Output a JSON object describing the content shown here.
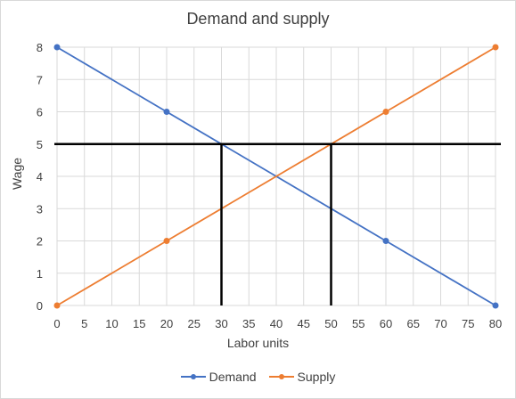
{
  "chart_data": {
    "type": "line",
    "title": "Demand and supply",
    "xlabel": "Labor units",
    "ylabel": "Wage",
    "xlim": [
      0,
      80
    ],
    "ylim": [
      0,
      8
    ],
    "x_ticks": [
      "0",
      "5",
      "10",
      "15",
      "20",
      "25",
      "30",
      "35",
      "40",
      "45",
      "50",
      "55",
      "60",
      "65",
      "70",
      "75",
      "80"
    ],
    "y_ticks": [
      "0",
      "1",
      "2",
      "3",
      "4",
      "5",
      "6",
      "7",
      "8"
    ],
    "grid": true,
    "legend_position": "bottom",
    "series": [
      {
        "name": "Demand",
        "color": "#4472C4",
        "points": [
          [
            0,
            8
          ],
          [
            20,
            6
          ],
          [
            60,
            2
          ],
          [
            80,
            0
          ]
        ]
      },
      {
        "name": "Supply",
        "color": "#ED7D31",
        "points": [
          [
            0,
            0
          ],
          [
            20,
            2
          ],
          [
            60,
            6
          ],
          [
            80,
            8
          ]
        ]
      }
    ],
    "annotations": {
      "horizontal_lines": [
        {
          "y": 5,
          "color": "#000000"
        }
      ],
      "vertical_lines": [
        {
          "x": 30,
          "y_to": 5,
          "color": "#000000"
        },
        {
          "x": 50,
          "y_to": 5,
          "color": "#000000"
        }
      ]
    }
  }
}
